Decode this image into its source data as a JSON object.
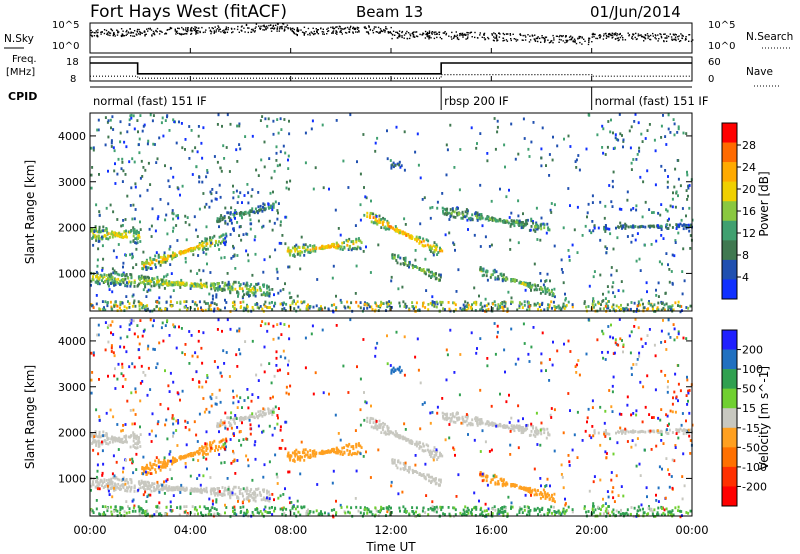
{
  "header": {
    "title": "Fort Hays West (fitACF)",
    "beam": "Beam 13",
    "date": "01/Jun/2014"
  },
  "noise_panel": {
    "left_label": "N.Sky",
    "right_label": "N.Search",
    "left_ticks": [
      "10^5",
      "10^0"
    ],
    "right_ticks": [
      "10^5",
      "10^0"
    ]
  },
  "freq_panel": {
    "left_label_line1": "Freq.",
    "left_label_line2": "[MHz]",
    "right_label": "Nave",
    "left_ticks": [
      "18",
      "8"
    ],
    "right_ticks": [
      "60",
      "0"
    ],
    "freq_steps": [
      [
        0,
        15.5
      ],
      [
        1.9,
        11.0
      ],
      [
        14.0,
        15.5
      ],
      [
        24,
        15.5
      ]
    ],
    "nave_steps": [
      [
        0,
        12
      ],
      [
        1.9,
        7
      ],
      [
        14.0,
        16
      ],
      [
        20.0,
        12
      ],
      [
        24,
        12
      ]
    ]
  },
  "cpid_panel": {
    "label": "CPID",
    "segments": [
      {
        "label": "normal (fast) 151 IF",
        "start_h": 0,
        "end_h": 14.0
      },
      {
        "label": "rbsp 200 IF",
        "start_h": 14.0,
        "end_h": 20.0
      },
      {
        "label": "normal (fast) 151 IF",
        "start_h": 20.0,
        "end_h": 24
      }
    ]
  },
  "power_panel": {
    "ylabel": "Slant Range [km]",
    "colorbar_label": "Power [dB]",
    "colorbar_ticks": [
      "28",
      "24",
      "20",
      "16",
      "12",
      "8",
      "4"
    ],
    "colorbar_colors": [
      "#ff0000",
      "#ff6a00",
      "#ffaa00",
      "#f0d000",
      "#8ac840",
      "#40a070",
      "#407850",
      "#2050b0",
      "#1030ff"
    ]
  },
  "velocity_panel": {
    "ylabel": "Slant Range [km]",
    "colorbar_label": "Velocity [m s^-1]",
    "colorbar_ticks": [
      "200",
      "100",
      "50",
      "15",
      "-15",
      "-50",
      "-100",
      "-200"
    ],
    "colorbar_colors": [
      "#2020ff",
      "#2070c0",
      "#30a050",
      "#70d030",
      "#c8c8c0",
      "#ffa020",
      "#ff7000",
      "#ff3000",
      "#ff0000"
    ]
  },
  "axes": {
    "xlabel": "Time UT",
    "x_ticks": [
      "00:00",
      "04:00",
      "08:00",
      "12:00",
      "16:00",
      "20:00",
      "00:00"
    ],
    "y_ticks": [
      "4000",
      "3000",
      "2000",
      "1000"
    ],
    "y_range_km": [
      180,
      4500
    ],
    "x_range_h": [
      0,
      24
    ]
  },
  "chart_data": {
    "type": "heatmap",
    "title": "Fort Hays West (fitACF)",
    "subtitle": "Beam 13",
    "xlabel": "Time UT",
    "ylabel": "Slant Range [km]",
    "x_range": [
      0,
      24
    ],
    "y_range": [
      180,
      4500
    ],
    "scatter_features": [
      {
        "name": "band_a",
        "t0": 0.0,
        "t1": 2.0,
        "r0": 1900,
        "r1": 1850,
        "width": 350,
        "power": 18,
        "vel": 0
      },
      {
        "name": "band_b",
        "t0": 2.0,
        "t1": 5.3,
        "r0": 1180,
        "r1": 1800,
        "width": 260,
        "power": 20,
        "vel": -40
      },
      {
        "name": "band_c",
        "t0": 0.0,
        "t1": 7.2,
        "r0": 950,
        "r1": 650,
        "width": 300,
        "power": 16,
        "vel": 0
      },
      {
        "name": "band_d",
        "t0": 7.8,
        "t1": 10.8,
        "r0": 1500,
        "r1": 1700,
        "width": 260,
        "power": 20,
        "vel": -40
      },
      {
        "name": "band_e",
        "t0": 11.0,
        "t1": 14.0,
        "r0": 2300,
        "r1": 1500,
        "width": 260,
        "power": 22,
        "vel": 0
      },
      {
        "name": "band_f",
        "t0": 12.0,
        "t1": 14.0,
        "r0": 1400,
        "r1": 900,
        "width": 200,
        "power": 14,
        "vel": 0
      },
      {
        "name": "band_g",
        "t0": 14.0,
        "t1": 18.3,
        "r0": 2400,
        "r1": 2000,
        "width": 250,
        "power": 12,
        "vel": 0
      },
      {
        "name": "band_h",
        "t0": 15.5,
        "t1": 18.5,
        "r0": 1100,
        "r1": 600,
        "width": 220,
        "power": 14,
        "vel": -40
      },
      {
        "name": "band_i",
        "t0": 20.0,
        "t1": 24.0,
        "r0": 2050,
        "r1": 2050,
        "width": 120,
        "power": 8,
        "vel": 0
      },
      {
        "name": "band_j",
        "t0": 5.0,
        "t1": 7.3,
        "r0": 2200,
        "r1": 2500,
        "width": 200,
        "power": 10,
        "vel": 0
      },
      {
        "name": "patch_k",
        "t0": 11.9,
        "t1": 12.4,
        "r0": 3400,
        "r1": 3400,
        "width": 150,
        "power": 6,
        "vel": 120
      }
    ]
  }
}
